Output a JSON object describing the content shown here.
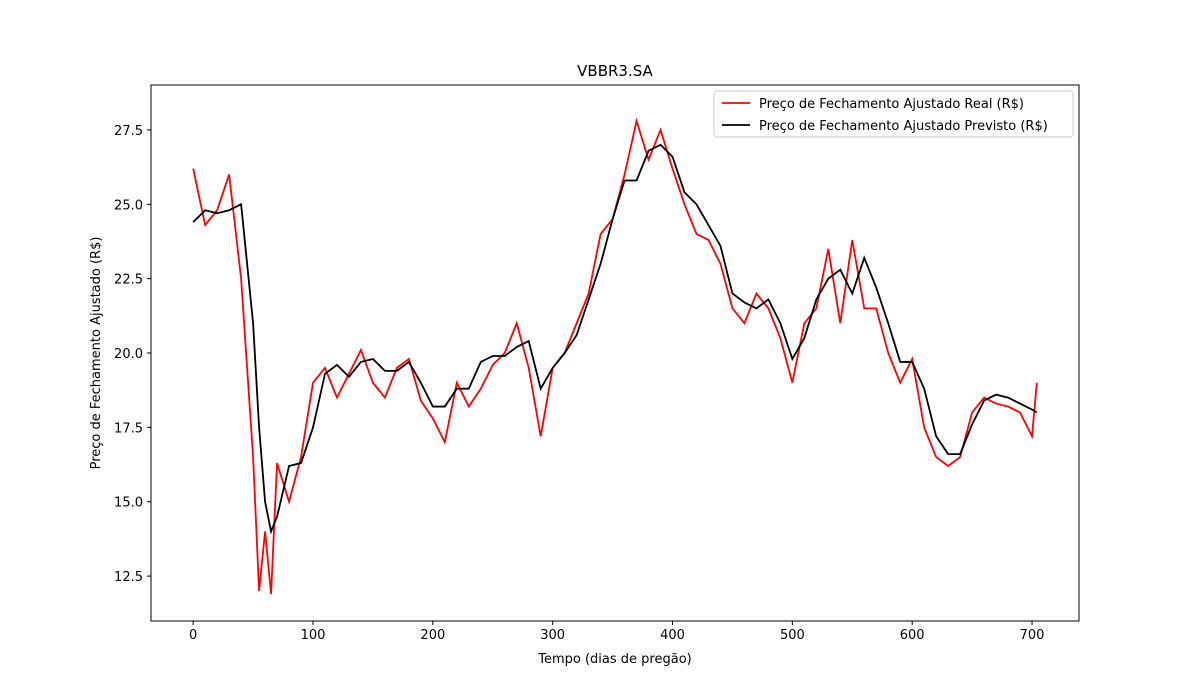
{
  "chart_data": {
    "type": "line",
    "title": "VBBR3.SA",
    "x_label": "Tempo (dias de pregão)",
    "y_label": "Preço de Fechamento Ajustado (R$)",
    "x": [
      0,
      10,
      20,
      30,
      40,
      50,
      55,
      60,
      65,
      70,
      80,
      90,
      100,
      110,
      120,
      130,
      140,
      150,
      160,
      170,
      180,
      190,
      200,
      210,
      220,
      230,
      240,
      250,
      260,
      270,
      280,
      290,
      300,
      310,
      320,
      330,
      340,
      350,
      360,
      370,
      380,
      390,
      400,
      410,
      420,
      430,
      440,
      450,
      460,
      470,
      480,
      490,
      500,
      510,
      520,
      530,
      540,
      550,
      560,
      570,
      580,
      590,
      600,
      610,
      620,
      630,
      640,
      650,
      660,
      670,
      680,
      690,
      700,
      704
    ],
    "series": [
      {
        "name": "Preço de Fechamento Ajustado Real (R$)",
        "color": "#ff0000",
        "values": [
          26.2,
          24.3,
          24.8,
          26.0,
          22.5,
          16.5,
          12.0,
          14.0,
          11.9,
          16.3,
          15.0,
          16.5,
          19.0,
          19.5,
          18.5,
          19.3,
          20.1,
          19.0,
          18.5,
          19.5,
          19.8,
          18.4,
          17.8,
          17.0,
          19.0,
          18.2,
          18.8,
          19.6,
          20.0,
          21.0,
          19.5,
          17.2,
          19.5,
          20.0,
          21.0,
          22.0,
          24.0,
          24.5,
          26.0,
          27.8,
          26.5,
          27.5,
          26.2,
          25.0,
          24.0,
          23.8,
          23.0,
          21.5,
          21.0,
          22.0,
          21.5,
          20.5,
          19.0,
          21.0,
          21.5,
          23.5,
          21.0,
          23.8,
          21.5,
          21.5,
          20.0,
          19.0,
          19.8,
          17.5,
          16.5,
          16.2,
          16.5,
          18.0,
          18.5,
          18.3,
          18.2,
          18.0,
          17.2,
          19.0
        ]
      },
      {
        "name": "Preço de Fechamento Ajustado Previsto (R$)",
        "color": "#000000",
        "values": [
          24.4,
          24.8,
          24.7,
          24.8,
          25.0,
          21.0,
          17.5,
          15.0,
          14.0,
          14.5,
          16.2,
          16.3,
          17.5,
          19.3,
          19.6,
          19.2,
          19.7,
          19.8,
          19.4,
          19.4,
          19.7,
          19.0,
          18.2,
          18.2,
          18.8,
          18.8,
          19.7,
          19.9,
          19.9,
          20.2,
          20.4,
          18.8,
          19.5,
          20.0,
          20.6,
          21.8,
          23.0,
          24.5,
          25.8,
          25.8,
          26.8,
          27.0,
          26.6,
          25.4,
          25.0,
          24.3,
          23.6,
          22.0,
          21.7,
          21.5,
          21.8,
          21.0,
          19.8,
          20.5,
          21.8,
          22.5,
          22.8,
          22.0,
          23.2,
          22.2,
          21.0,
          19.7,
          19.7,
          18.8,
          17.2,
          16.6,
          16.6,
          17.6,
          18.4,
          18.6,
          18.5,
          18.3,
          18.1,
          18.0
        ]
      }
    ],
    "xlim": [
      -35.2,
      739.2
    ],
    "xticks": [
      0,
      100,
      200,
      300,
      400,
      500,
      600,
      700
    ],
    "ylim": [
      10.99,
      29.01
    ],
    "yticks": [
      {
        "value": 12.5,
        "label": "12.5"
      },
      {
        "value": 15,
        "label": "15.0"
      },
      {
        "value": 17.5,
        "label": "17.5"
      },
      {
        "value": 20,
        "label": "20.0"
      },
      {
        "value": 22.5,
        "label": "22.5"
      },
      {
        "value": 25,
        "label": "25.0"
      },
      {
        "value": 27.5,
        "label": "27.5"
      }
    ],
    "legend": "upper right"
  }
}
